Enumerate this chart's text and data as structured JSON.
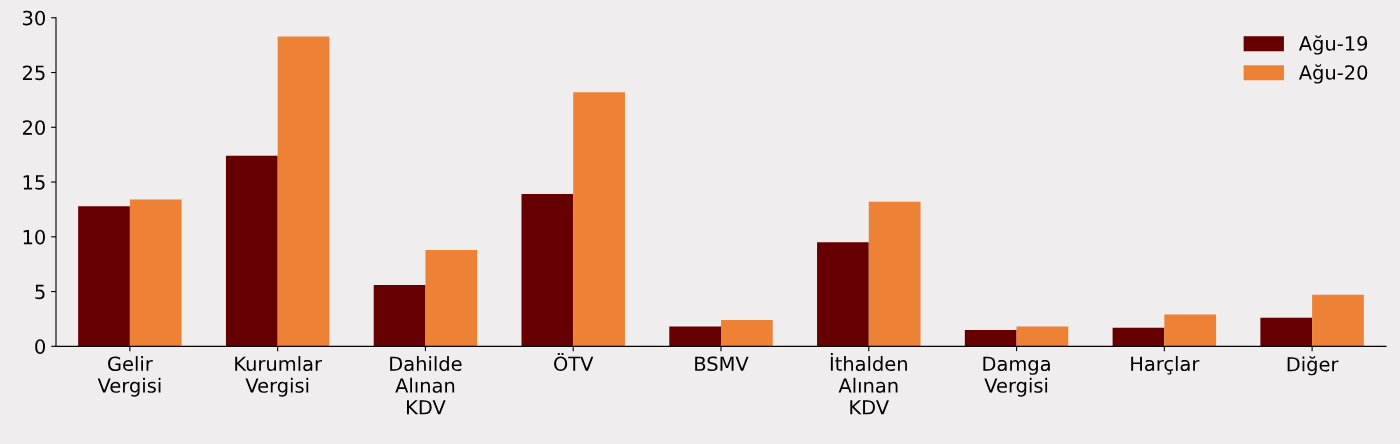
{
  "chart_data": {
    "type": "bar",
    "categories": [
      "Gelir\nVergisi",
      "Kurumlar\nVergisi",
      "Dahilde\nAlınan\nKDV",
      "ÖTV",
      "BSMV",
      "İthalden\nAlınan\nKDV",
      "Damga\nVergisi",
      "Harçlar",
      "Diğer"
    ],
    "series": [
      {
        "name": "Ağu-19",
        "color": "#660000",
        "values": [
          12.8,
          17.4,
          5.6,
          13.9,
          1.8,
          9.5,
          1.5,
          1.7,
          2.6
        ]
      },
      {
        "name": "Ağu-20",
        "color": "#ed8136",
        "values": [
          13.4,
          28.3,
          8.8,
          23.2,
          2.4,
          13.2,
          1.8,
          2.9,
          4.7
        ]
      }
    ],
    "ylim": [
      0,
      30
    ],
    "yticks": [
      0,
      5,
      10,
      15,
      20,
      25,
      30
    ],
    "grid": false,
    "legend": "top right"
  }
}
